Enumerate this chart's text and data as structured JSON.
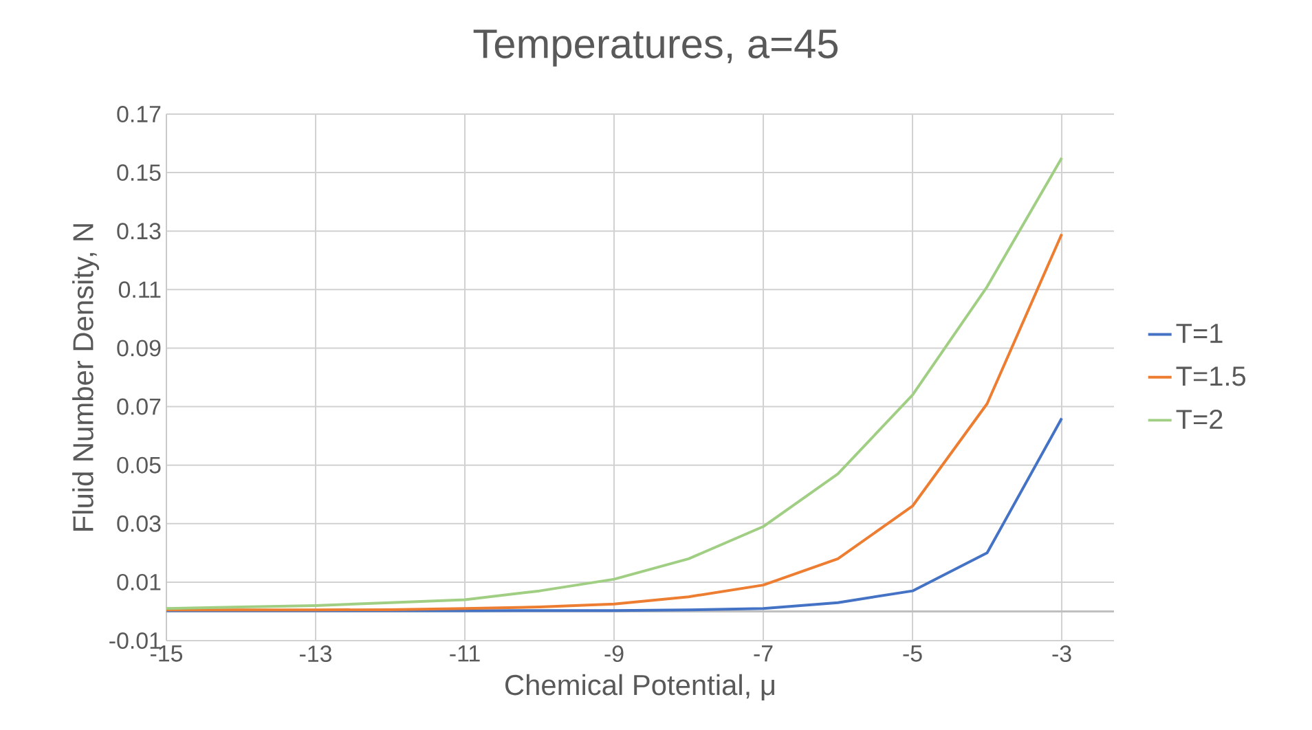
{
  "chart_data": {
    "type": "line",
    "title": "Temperatures, a=45",
    "xlabel": "Chemical Potential, μ",
    "ylabel": "Fluid Number Density, N",
    "x": [
      -15,
      -14,
      -13,
      -12,
      -11,
      -10,
      -9,
      -8,
      -7,
      -6,
      -5,
      -4,
      -3
    ],
    "series": [
      {
        "name": "T=1",
        "color": "#4472c4",
        "values": [
          0.0002,
          0.0002,
          0.0002,
          0.0002,
          0.0002,
          0.0003,
          0.0003,
          0.0005,
          0.001,
          0.003,
          0.007,
          0.02,
          0.066
        ]
      },
      {
        "name": "T=1.5",
        "color": "#ed7d31",
        "values": [
          0.0005,
          0.0005,
          0.0005,
          0.0006,
          0.001,
          0.0015,
          0.0025,
          0.005,
          0.009,
          0.018,
          0.036,
          0.071,
          0.129
        ]
      },
      {
        "name": "T=2",
        "color": "#a0cf84",
        "values": [
          0.001,
          0.0015,
          0.002,
          0.003,
          0.004,
          0.007,
          0.011,
          0.018,
          0.029,
          0.047,
          0.074,
          0.111,
          0.155
        ]
      }
    ],
    "xlim": [
      -15,
      -2.3
    ],
    "xticks": [
      -15,
      -13,
      -11,
      -9,
      -7,
      -5,
      -3
    ],
    "ylim": [
      -0.01,
      0.17
    ],
    "yticks": [
      -0.01,
      0.01,
      0.03,
      0.05,
      0.07,
      0.09,
      0.11,
      0.13,
      0.15,
      0.17
    ],
    "ref_lines": [
      {
        "axis": "y",
        "value": 0,
        "color": "#bfbfbf"
      }
    ],
    "grid": true,
    "legend": "right",
    "marker": "none",
    "line_style": "solid"
  }
}
